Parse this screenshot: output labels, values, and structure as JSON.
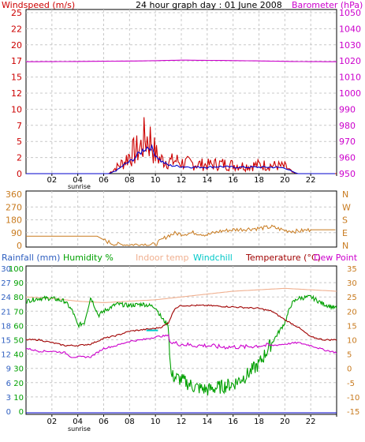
{
  "colors": {
    "red": "#cc0000",
    "magenta": "#cc00cc",
    "blue": "#0000cc",
    "green": "#00a000",
    "orange": "#c87a1e",
    "salmon": "#f0b090",
    "cyan": "#00c8c8",
    "darkred": "#a00000",
    "grid": "#c8c8c8"
  },
  "chart_data": [
    {
      "id": "wind-baro",
      "type": "line",
      "title": "24 hour graph day : 01 June 2008",
      "left_label": "Windspeed (m/s)",
      "right_label": "Barometer (hPa)",
      "x_ticks": [
        "02",
        "04",
        "06",
        "08",
        "10",
        "12",
        "14",
        "16",
        "18",
        "20",
        "22",
        ""
      ],
      "left_ticks": [
        "0",
        "2.5",
        "5",
        "7.5",
        "10",
        "12.5",
        "15",
        "17.5",
        "20",
        "22.5",
        "25"
      ],
      "left_tick_labels": [
        "0",
        "2",
        "5",
        "7",
        "10",
        "12",
        "15",
        "17",
        "20",
        "22",
        "25"
      ],
      "right_ticks": [
        950,
        960,
        970,
        980,
        990,
        1000,
        1010,
        1020,
        1030,
        1040,
        1050
      ],
      "right_tick_labels": [
        "950",
        "960",
        "970",
        "980",
        "990",
        "1000",
        "1010",
        "1020",
        "1030",
        "1040",
        "1050"
      ],
      "xlim": [
        0,
        24
      ],
      "ylim_left": [
        0,
        25
      ],
      "ylim_right": [
        950,
        1050
      ],
      "sunrise_label": "sunrise",
      "series": [
        {
          "color_key": "magenta",
          "axis": "right",
          "x": [
            0,
            3,
            6,
            9,
            12,
            15,
            18,
            21,
            24
          ],
          "y": [
            1019.5,
            1019.6,
            1019.8,
            1020,
            1020.5,
            1020.3,
            1020,
            1019.6,
            1019.5
          ]
        },
        {
          "color_key": "red",
          "axis": "left",
          "gusty": true,
          "x": [
            0,
            6.4,
            6.8,
            7.2,
            7.6,
            8.0,
            8.4,
            8.8,
            9.2,
            9.6,
            10.0,
            10.4,
            10.8,
            11.2,
            11.6,
            12,
            13,
            14,
            15,
            16,
            17,
            18,
            19,
            20,
            20.6,
            21,
            24
          ],
          "y": [
            0,
            0,
            0.8,
            1.5,
            2.2,
            3.5,
            4.0,
            4.6,
            6.5,
            6.2,
            3.6,
            2.5,
            2.5,
            2.2,
            2.4,
            2.0,
            1.8,
            1.6,
            1.8,
            1.6,
            1.4,
            1.6,
            1.5,
            1.3,
            0.2,
            0,
            0
          ]
        },
        {
          "color_key": "blue",
          "axis": "left",
          "x": [
            0,
            6.4,
            7.0,
            7.6,
            8.2,
            8.8,
            9.2,
            9.6,
            10.0,
            10.4,
            11,
            12,
            13,
            14,
            15,
            16,
            17,
            18,
            19,
            20,
            20.6,
            21,
            24
          ],
          "y": [
            0,
            0,
            0.5,
            1.4,
            2.1,
            3.2,
            4.0,
            4.2,
            3.0,
            2.0,
            1.3,
            1.1,
            1.0,
            1.0,
            1.1,
            1.0,
            1.0,
            1.0,
            1.0,
            0.9,
            0.3,
            0,
            0
          ]
        }
      ]
    },
    {
      "id": "direction",
      "type": "line",
      "left_ticks": [
        "0",
        "90",
        "180",
        "270",
        "360"
      ],
      "right_ticks": [
        "N",
        "E",
        "S",
        "W",
        "N"
      ],
      "xlim": [
        0,
        24
      ],
      "ylim_left": [
        0,
        360
      ],
      "series": [
        {
          "color_key": "orange",
          "axis": "left",
          "x": [
            0,
            5.5,
            6.2,
            6.8,
            7.5,
            8.2,
            9,
            10,
            10.5,
            11,
            11.5,
            12,
            13,
            14,
            15,
            16,
            17,
            18,
            19,
            20,
            21,
            22,
            24
          ],
          "y": [
            65,
            65,
            30,
            10,
            5,
            5,
            8,
            5,
            40,
            70,
            85,
            80,
            90,
            75,
            100,
            110,
            115,
            120,
            130,
            105,
            100,
            110,
            110
          ]
        }
      ]
    },
    {
      "id": "temp-hum",
      "type": "line",
      "labels": {
        "rainfall": "Rainfall (mm)",
        "humidity": "Humidity %",
        "indoor": "Indoor temp",
        "windchill": "Windchill",
        "temperature": "Temperature (°C)",
        "dewpoint": "Dew Point"
      },
      "rain_ticks": [
        "0",
        "3",
        "6",
        "9",
        "12",
        "15",
        "18",
        "21",
        "24",
        "27",
        "30"
      ],
      "humidity_ticks": [
        "0",
        "10",
        "20",
        "30",
        "40",
        "50",
        "60",
        "70",
        "80",
        "90",
        "100"
      ],
      "temp_ticks": [
        "-15",
        "-10",
        "-5",
        "0",
        "5",
        "10",
        "15",
        "20",
        "25",
        "30",
        "35"
      ],
      "x_ticks": [
        "02",
        "04",
        "06",
        "08",
        "10",
        "12",
        "14",
        "16",
        "18",
        "20",
        "22",
        ""
      ],
      "sunrise_label": "sunrise",
      "xlim": [
        0,
        24
      ],
      "ylim_temp": [
        -15,
        35
      ],
      "series": [
        {
          "color_key": "salmon",
          "name": "Indoor temp",
          "x": [
            0,
            2,
            4,
            6,
            8,
            10,
            12,
            14,
            16,
            18,
            20,
            22,
            24
          ],
          "y": [
            25,
            24.5,
            23.5,
            23,
            23.5,
            24,
            25,
            26,
            27,
            27.5,
            28,
            27.5,
            27
          ]
        },
        {
          "color_key": "green",
          "name": "Humidity",
          "axis": "humidity",
          "noisy": true,
          "x": [
            0,
            1,
            2,
            3,
            3.6,
            4,
            4.5,
            5,
            5.6,
            6,
            7,
            8,
            9,
            10,
            10.5,
            11,
            11.2,
            12,
            13,
            14,
            15,
            16,
            17,
            18,
            19,
            20,
            20.5,
            21,
            22,
            23,
            24
          ],
          "y": [
            77,
            79,
            79,
            77,
            70,
            60,
            62,
            80,
            67,
            70,
            75,
            74,
            75,
            73,
            65,
            60,
            25,
            22,
            17,
            15,
            17,
            19,
            25,
            33,
            48,
            62,
            75,
            79,
            80,
            75,
            72
          ]
        },
        {
          "color_key": "darkred",
          "name": "Temperature (°C)",
          "x": [
            0,
            1,
            2,
            3,
            4,
            5,
            5.5,
            6,
            7,
            8,
            9,
            10,
            10.5,
            11,
            11.5,
            12,
            14,
            16,
            18,
            19,
            20,
            21,
            22,
            23,
            24
          ],
          "y": [
            10,
            10,
            9,
            8,
            8,
            8.5,
            9.5,
            10.5,
            11.5,
            13,
            13.5,
            14,
            14.5,
            16,
            21,
            22,
            22,
            21.5,
            21,
            20,
            17,
            14.5,
            11,
            10,
            10
          ]
        },
        {
          "color_key": "magenta",
          "name": "Dew Point",
          "x": [
            0,
            1,
            2,
            3,
            3.5,
            4,
            5,
            6,
            7,
            8,
            9,
            10,
            11,
            11.2,
            12,
            13,
            14,
            15,
            16,
            17,
            18,
            19,
            20,
            21,
            22,
            23,
            24
          ],
          "y": [
            7,
            6,
            6,
            5.5,
            4,
            4,
            4,
            7,
            8,
            9.5,
            10,
            11,
            11.5,
            9,
            8.5,
            8,
            8,
            7.5,
            7.5,
            7.5,
            8,
            8,
            8.5,
            9,
            8,
            6.5,
            5.5
          ]
        },
        {
          "color_key": "cyan",
          "name": "Windchill",
          "x": [
            9.3,
            10.2
          ],
          "y": [
            13.3,
            13.3
          ]
        },
        {
          "color_key": "blue",
          "name": "Rainfall",
          "axis": "rain",
          "x": [
            0,
            24
          ],
          "y": [
            0,
            0
          ]
        }
      ]
    }
  ]
}
